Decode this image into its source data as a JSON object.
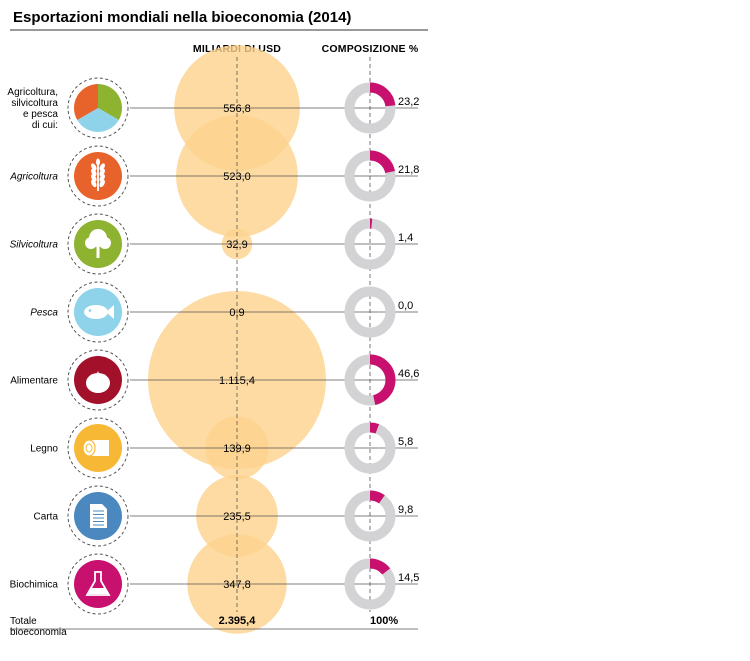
{
  "colors": {
    "bubble": "#fcd28c",
    "donut_base": "#d3d3d5",
    "donut_share": "#c8106e",
    "rule": "#555555",
    "dashed": "#555555"
  },
  "chart_data": {
    "type": "bubble_donut_table",
    "title": "Esportazioni mondiali nella bioeconomia (2014)",
    "columns": [
      "MILIARDI DI USD",
      "COMPOSIZIONE %"
    ],
    "rows": [
      {
        "label": "Agricoltura, silvicoltura e pesca di cui:",
        "label_lines": [
          "Agricoltura,",
          "silvicoltura",
          "e pesca",
          "di cui:"
        ],
        "italic": false,
        "icon": "agriculture-pie-icon",
        "icon_color": "#e8632b",
        "value": 556.8,
        "value_label": "556,8",
        "share": 23.2,
        "share_label": "23,2"
      },
      {
        "label": "Agricoltura",
        "label_lines": [
          "Agricoltura"
        ],
        "italic": true,
        "icon": "wheat-icon",
        "icon_color": "#e8632b",
        "value": 523.0,
        "value_label": "523,0",
        "share": 21.8,
        "share_label": "21,8"
      },
      {
        "label": "Silvicoltura",
        "label_lines": [
          "Silvicoltura"
        ],
        "italic": true,
        "icon": "tree-icon",
        "icon_color": "#8db330",
        "value": 32.9,
        "value_label": "32,9",
        "share": 1.4,
        "share_label": "1,4"
      },
      {
        "label": "Pesca",
        "label_lines": [
          "Pesca"
        ],
        "italic": true,
        "icon": "fish-icon",
        "icon_color": "#8fd3ea",
        "value": 0.9,
        "value_label": "0,9",
        "share": 0.0,
        "share_label": "0,0"
      },
      {
        "label": "Alimentare",
        "label_lines": [
          "Alimentare"
        ],
        "italic": false,
        "icon": "tomato-icon",
        "icon_color": "#a3102a",
        "value": 1115.4,
        "value_label": "1.115,4",
        "share": 46.6,
        "share_label": "46,6"
      },
      {
        "label": "Legno",
        "label_lines": [
          "Legno"
        ],
        "italic": false,
        "icon": "log-icon",
        "icon_color": "#f7b835",
        "value": 139.9,
        "value_label": "139,9",
        "share": 5.8,
        "share_label": "5,8"
      },
      {
        "label": "Carta",
        "label_lines": [
          "Carta"
        ],
        "italic": false,
        "icon": "paper-icon",
        "icon_color": "#4a88bf",
        "value": 235.5,
        "value_label": "235,5",
        "share": 9.8,
        "share_label": "9,8"
      },
      {
        "label": "Biochimica",
        "label_lines": [
          "Biochimica"
        ],
        "italic": false,
        "icon": "flask-icon",
        "icon_color": "#c8106e",
        "value": 347.8,
        "value_label": "347,8",
        "share": 14.5,
        "share_label": "14,5"
      }
    ],
    "total": {
      "label_lines": [
        "Totale",
        "bioeconomia"
      ],
      "value": 2395.4,
      "value_label": "2.395,4",
      "share_label": "100%"
    }
  }
}
